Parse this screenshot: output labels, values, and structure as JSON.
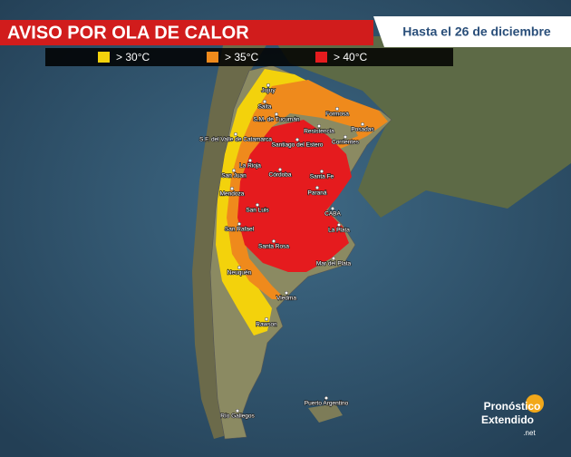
{
  "header": {
    "title": "AVISO POR OLA DE CALOR",
    "subtitle": "Hasta el 26 de diciembre"
  },
  "legend": [
    {
      "label": "> 30°C",
      "color": "#f3d20c"
    },
    {
      "label": "> 35°C",
      "color": "#ef8a1c"
    },
    {
      "label": "> 40°C",
      "color": "#e51b1e"
    }
  ],
  "cities": [
    "Jujuy",
    "Salta",
    "S.M. de Tucumán",
    "Formosa",
    "Resistencia",
    "Posadas",
    "Corrientes",
    "S.F. del Valle de Catamarca",
    "Santiago del Estero",
    "La Rioja",
    "Córdoba",
    "San Juan",
    "Santa Fe",
    "Paraná",
    "Mendoza",
    "San Luis",
    "CABA",
    "La Plata",
    "San Rafael",
    "Santa Rosa",
    "Mar del Plata",
    "Neuquén",
    "Viedma",
    "Rawson",
    "Puerto Argentino",
    "Río Gallegos"
  ],
  "logo": {
    "line1": "Pronóstico",
    "line2": "Extendido",
    "suffix": ".net"
  }
}
